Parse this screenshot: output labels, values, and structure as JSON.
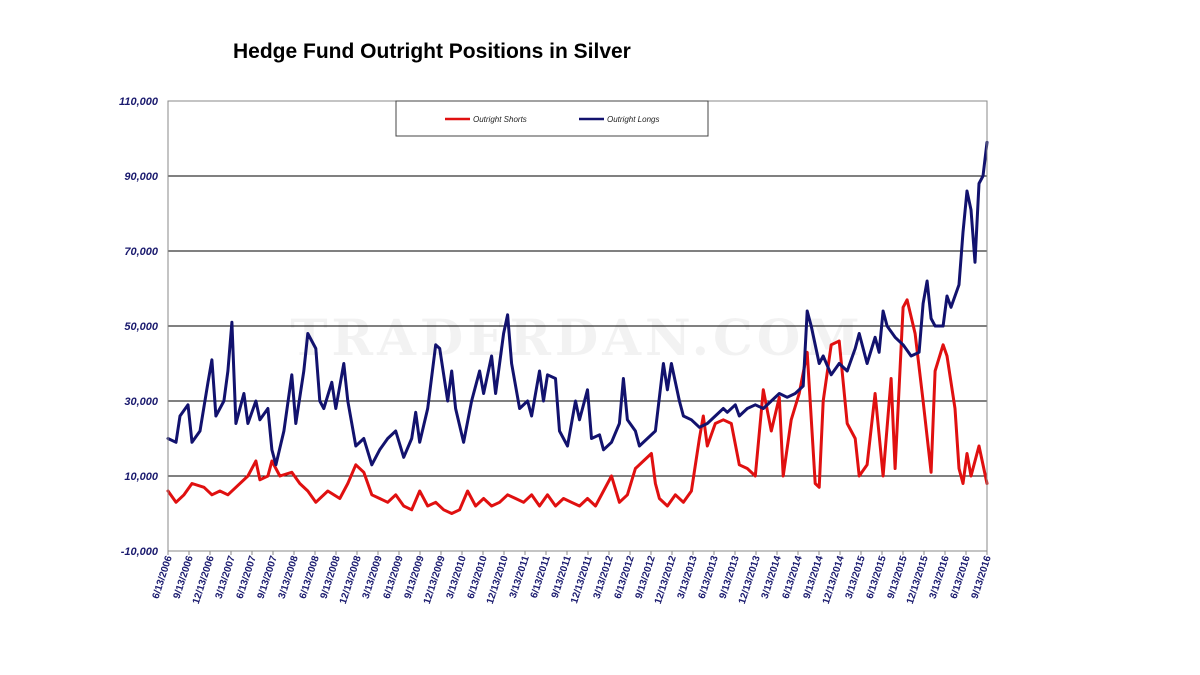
{
  "chart_data": {
    "type": "line",
    "title": "Hedge Fund Outright Positions in Silver",
    "watermark": "TRADERDAN.COM",
    "ylim": [
      -10000,
      110000
    ],
    "yticks": [
      "110,000",
      "90,000",
      "70,000",
      "50,000",
      "30,000",
      "10,000",
      "-10,000"
    ],
    "ytick_values": [
      110000,
      90000,
      70000,
      50000,
      30000,
      10000,
      -10000
    ],
    "xticks": [
      "6/13/2006",
      "9/13/2006",
      "12/13/2006",
      "3/13/2007",
      "6/13/2007",
      "9/13/2007",
      "3/13/2008",
      "6/13/2008",
      "9/13/2008",
      "12/13/2008",
      "3/13/2009",
      "6/13/2009",
      "9/13/2009",
      "12/13/2009",
      "3/13/2010",
      "6/13/2010",
      "12/13/2010",
      "3/13/2011",
      "6/13/2011",
      "9/13/2011",
      "12/13/2011",
      "3/13/2012",
      "6/13/2012",
      "9/13/2012",
      "12/13/2012",
      "3/13/2013",
      "6/13/2013",
      "9/13/2013",
      "12/13/2013",
      "3/13/2014",
      "6/13/2014",
      "9/13/2014",
      "12/13/2014",
      "3/13/2015",
      "6/13/2015",
      "9/13/2015",
      "12/13/2015",
      "3/13/2016",
      "6/13/2016",
      "9/13/2016"
    ],
    "grid": true,
    "legend_placement": "top-center",
    "x_range": [
      2006.45,
      2016.7
    ],
    "series": [
      {
        "name": "Outright Shorts",
        "color": "#e01010",
        "points": [
          [
            2006.45,
            6000
          ],
          [
            2006.55,
            3000
          ],
          [
            2006.65,
            5000
          ],
          [
            2006.75,
            8000
          ],
          [
            2006.9,
            7000
          ],
          [
            2007.0,
            5000
          ],
          [
            2007.1,
            6000
          ],
          [
            2007.2,
            5000
          ],
          [
            2007.3,
            7000
          ],
          [
            2007.45,
            10000
          ],
          [
            2007.55,
            14000
          ],
          [
            2007.6,
            9000
          ],
          [
            2007.7,
            10000
          ],
          [
            2007.75,
            14000
          ],
          [
            2007.85,
            10000
          ],
          [
            2008.0,
            11000
          ],
          [
            2008.1,
            8000
          ],
          [
            2008.2,
            6000
          ],
          [
            2008.3,
            3000
          ],
          [
            2008.45,
            6000
          ],
          [
            2008.6,
            4000
          ],
          [
            2008.7,
            8000
          ],
          [
            2008.8,
            13000
          ],
          [
            2008.9,
            11000
          ],
          [
            2009.0,
            5000
          ],
          [
            2009.1,
            4000
          ],
          [
            2009.2,
            3000
          ],
          [
            2009.3,
            5000
          ],
          [
            2009.4,
            2000
          ],
          [
            2009.5,
            1000
          ],
          [
            2009.6,
            6000
          ],
          [
            2009.7,
            2000
          ],
          [
            2009.8,
            3000
          ],
          [
            2009.9,
            1000
          ],
          [
            2010.0,
            0
          ],
          [
            2010.1,
            1000
          ],
          [
            2010.2,
            6000
          ],
          [
            2010.3,
            2000
          ],
          [
            2010.4,
            4000
          ],
          [
            2010.5,
            2000
          ],
          [
            2010.6,
            3000
          ],
          [
            2010.7,
            5000
          ],
          [
            2010.8,
            4000
          ],
          [
            2010.9,
            3000
          ],
          [
            2011.0,
            5000
          ],
          [
            2011.1,
            2000
          ],
          [
            2011.2,
            5000
          ],
          [
            2011.3,
            2000
          ],
          [
            2011.4,
            4000
          ],
          [
            2011.5,
            3000
          ],
          [
            2011.6,
            2000
          ],
          [
            2011.7,
            4000
          ],
          [
            2011.8,
            2000
          ],
          [
            2011.9,
            6000
          ],
          [
            2012.0,
            10000
          ],
          [
            2012.1,
            3000
          ],
          [
            2012.2,
            5000
          ],
          [
            2012.3,
            12000
          ],
          [
            2012.4,
            14000
          ],
          [
            2012.5,
            16000
          ],
          [
            2012.55,
            8000
          ],
          [
            2012.6,
            4000
          ],
          [
            2012.7,
            2000
          ],
          [
            2012.8,
            5000
          ],
          [
            2012.9,
            3000
          ],
          [
            2013.0,
            6000
          ],
          [
            2013.1,
            20000
          ],
          [
            2013.15,
            26000
          ],
          [
            2013.2,
            18000
          ],
          [
            2013.3,
            24000
          ],
          [
            2013.4,
            25000
          ],
          [
            2013.5,
            24000
          ],
          [
            2013.6,
            13000
          ],
          [
            2013.7,
            12000
          ],
          [
            2013.8,
            10000
          ],
          [
            2013.9,
            33000
          ],
          [
            2014.0,
            22000
          ],
          [
            2014.1,
            31000
          ],
          [
            2014.15,
            10000
          ],
          [
            2014.25,
            25000
          ],
          [
            2014.35,
            32000
          ],
          [
            2014.45,
            43000
          ],
          [
            2014.55,
            8000
          ],
          [
            2014.6,
            7000
          ],
          [
            2014.65,
            30000
          ],
          [
            2014.75,
            45000
          ],
          [
            2014.85,
            46000
          ],
          [
            2014.95,
            24000
          ],
          [
            2015.05,
            20000
          ],
          [
            2015.1,
            10000
          ],
          [
            2015.2,
            13000
          ],
          [
            2015.3,
            32000
          ],
          [
            2015.4,
            10000
          ],
          [
            2015.5,
            36000
          ],
          [
            2015.55,
            12000
          ],
          [
            2015.65,
            55000
          ],
          [
            2015.7,
            57000
          ],
          [
            2015.8,
            48000
          ],
          [
            2015.9,
            30000
          ],
          [
            2016.0,
            11000
          ],
          [
            2016.05,
            38000
          ],
          [
            2016.15,
            45000
          ],
          [
            2016.2,
            42000
          ],
          [
            2016.3,
            28000
          ],
          [
            2016.35,
            12000
          ],
          [
            2016.4,
            8000
          ],
          [
            2016.45,
            16000
          ],
          [
            2016.5,
            10000
          ],
          [
            2016.6,
            18000
          ],
          [
            2016.7,
            8000
          ]
        ]
      },
      {
        "name": "Outright Longs",
        "color": "#12126e",
        "points": [
          [
            2006.45,
            20000
          ],
          [
            2006.55,
            19000
          ],
          [
            2006.6,
            26000
          ],
          [
            2006.7,
            29000
          ],
          [
            2006.75,
            19000
          ],
          [
            2006.85,
            22000
          ],
          [
            2006.95,
            35000
          ],
          [
            2007.0,
            41000
          ],
          [
            2007.05,
            26000
          ],
          [
            2007.15,
            30000
          ],
          [
            2007.2,
            38000
          ],
          [
            2007.25,
            51000
          ],
          [
            2007.3,
            24000
          ],
          [
            2007.4,
            32000
          ],
          [
            2007.45,
            24000
          ],
          [
            2007.55,
            30000
          ],
          [
            2007.6,
            25000
          ],
          [
            2007.7,
            28000
          ],
          [
            2007.75,
            17000
          ],
          [
            2007.8,
            13000
          ],
          [
            2007.9,
            22000
          ],
          [
            2008.0,
            37000
          ],
          [
            2008.05,
            24000
          ],
          [
            2008.15,
            38000
          ],
          [
            2008.2,
            48000
          ],
          [
            2008.3,
            44000
          ],
          [
            2008.35,
            30000
          ],
          [
            2008.4,
            28000
          ],
          [
            2008.5,
            35000
          ],
          [
            2008.55,
            28000
          ],
          [
            2008.65,
            40000
          ],
          [
            2008.7,
            30000
          ],
          [
            2008.8,
            18000
          ],
          [
            2008.9,
            20000
          ],
          [
            2009.0,
            13000
          ],
          [
            2009.1,
            17000
          ],
          [
            2009.2,
            20000
          ],
          [
            2009.3,
            22000
          ],
          [
            2009.4,
            15000
          ],
          [
            2009.5,
            20000
          ],
          [
            2009.55,
            27000
          ],
          [
            2009.6,
            19000
          ],
          [
            2009.7,
            28000
          ],
          [
            2009.8,
            45000
          ],
          [
            2009.85,
            44000
          ],
          [
            2009.95,
            30000
          ],
          [
            2010.0,
            38000
          ],
          [
            2010.05,
            28000
          ],
          [
            2010.15,
            19000
          ],
          [
            2010.25,
            30000
          ],
          [
            2010.35,
            38000
          ],
          [
            2010.4,
            32000
          ],
          [
            2010.5,
            42000
          ],
          [
            2010.55,
            32000
          ],
          [
            2010.65,
            48000
          ],
          [
            2010.7,
            53000
          ],
          [
            2010.75,
            40000
          ],
          [
            2010.85,
            28000
          ],
          [
            2010.95,
            30000
          ],
          [
            2011.0,
            26000
          ],
          [
            2011.1,
            38000
          ],
          [
            2011.15,
            30000
          ],
          [
            2011.2,
            37000
          ],
          [
            2011.3,
            36000
          ],
          [
            2011.35,
            22000
          ],
          [
            2011.45,
            18000
          ],
          [
            2011.55,
            30000
          ],
          [
            2011.6,
            25000
          ],
          [
            2011.7,
            33000
          ],
          [
            2011.75,
            20000
          ],
          [
            2011.85,
            21000
          ],
          [
            2011.9,
            17000
          ],
          [
            2012.0,
            19000
          ],
          [
            2012.1,
            24000
          ],
          [
            2012.15,
            36000
          ],
          [
            2012.2,
            25000
          ],
          [
            2012.3,
            22000
          ],
          [
            2012.35,
            18000
          ],
          [
            2012.45,
            20000
          ],
          [
            2012.55,
            22000
          ],
          [
            2012.65,
            40000
          ],
          [
            2012.7,
            33000
          ],
          [
            2012.75,
            40000
          ],
          [
            2012.85,
            30000
          ],
          [
            2012.9,
            26000
          ],
          [
            2013.0,
            25000
          ],
          [
            2013.1,
            23000
          ],
          [
            2013.2,
            24000
          ],
          [
            2013.3,
            26000
          ],
          [
            2013.4,
            28000
          ],
          [
            2013.45,
            27000
          ],
          [
            2013.55,
            29000
          ],
          [
            2013.6,
            26000
          ],
          [
            2013.7,
            28000
          ],
          [
            2013.8,
            29000
          ],
          [
            2013.9,
            28000
          ],
          [
            2014.0,
            30000
          ],
          [
            2014.1,
            32000
          ],
          [
            2014.2,
            31000
          ],
          [
            2014.3,
            32000
          ],
          [
            2014.4,
            34000
          ],
          [
            2014.45,
            54000
          ],
          [
            2014.5,
            50000
          ],
          [
            2014.6,
            40000
          ],
          [
            2014.65,
            42000
          ],
          [
            2014.75,
            37000
          ],
          [
            2014.85,
            40000
          ],
          [
            2014.95,
            38000
          ],
          [
            2015.05,
            44000
          ],
          [
            2015.1,
            48000
          ],
          [
            2015.2,
            40000
          ],
          [
            2015.3,
            47000
          ],
          [
            2015.35,
            43000
          ],
          [
            2015.4,
            54000
          ],
          [
            2015.45,
            50000
          ],
          [
            2015.55,
            47000
          ],
          [
            2015.65,
            45000
          ],
          [
            2015.75,
            42000
          ],
          [
            2015.85,
            43000
          ],
          [
            2015.9,
            56000
          ],
          [
            2015.95,
            62000
          ],
          [
            2016.0,
            52000
          ],
          [
            2016.05,
            50000
          ],
          [
            2016.15,
            50000
          ],
          [
            2016.2,
            58000
          ],
          [
            2016.25,
            55000
          ],
          [
            2016.35,
            61000
          ],
          [
            2016.4,
            75000
          ],
          [
            2016.45,
            86000
          ],
          [
            2016.5,
            81000
          ],
          [
            2016.55,
            67000
          ],
          [
            2016.6,
            88000
          ],
          [
            2016.65,
            90000
          ],
          [
            2016.7,
            99000
          ]
        ]
      }
    ]
  }
}
